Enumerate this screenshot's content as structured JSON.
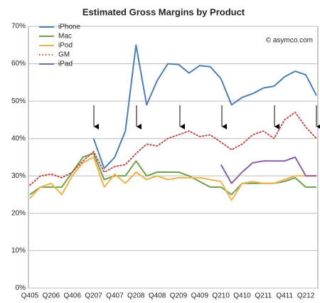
{
  "chart_data": {
    "type": "line",
    "title": "Estimated Gross Margins by Product",
    "annotation": "© asymco.com",
    "categories": [
      "Q405",
      null,
      "Q206",
      null,
      "Q406",
      null,
      "Q207",
      null,
      "Q407",
      null,
      "Q208",
      null,
      "Q408",
      null,
      "Q209",
      null,
      "Q409",
      null,
      "Q210",
      null,
      "Q410",
      null,
      "Q211",
      null,
      "Q411",
      null,
      "Q212",
      null
    ],
    "ylim": [
      0,
      70
    ],
    "yticks": [
      {
        "value": 0,
        "label": "0%"
      },
      {
        "value": 10,
        "label": "10%"
      },
      {
        "value": 20,
        "label": "20%"
      },
      {
        "value": 30,
        "label": "30%"
      },
      {
        "value": 40,
        "label": "40%"
      },
      {
        "value": 50,
        "label": "50%"
      },
      {
        "value": 60,
        "label": "60%"
      },
      {
        "value": 70,
        "label": "70%"
      }
    ],
    "grid": true,
    "legend": "upper left",
    "series": [
      {
        "name": "iPhone",
        "color": "#4a7eb5",
        "style": "solid",
        "values": [
          null,
          null,
          null,
          null,
          null,
          null,
          40,
          32,
          35,
          42,
          65,
          49,
          55.5,
          60,
          59.8,
          57.5,
          59.5,
          59.2,
          56,
          49,
          51,
          52,
          53.5,
          54,
          56.5,
          58,
          57,
          51.5
        ]
      },
      {
        "name": "Mac",
        "color": "#6ea14a",
        "style": "solid",
        "values": [
          25,
          27,
          27,
          27,
          31,
          35,
          36,
          29,
          30,
          30,
          34,
          30,
          31,
          31,
          31,
          30,
          28.5,
          27,
          27,
          25,
          28,
          28,
          28,
          28,
          28.5,
          29.5,
          27,
          27
        ]
      },
      {
        "name": "iPod",
        "color": "#f0b24a",
        "style": "solid",
        "values": [
          24,
          27,
          28,
          25,
          30,
          33.5,
          35,
          27,
          30.5,
          28,
          31,
          29,
          30,
          29,
          29.5,
          29.5,
          29.5,
          29,
          28.5,
          23.5,
          28,
          28.5,
          28,
          28,
          29,
          30,
          30,
          30
        ]
      },
      {
        "name": "GM",
        "color": "#c0504d",
        "style": "dotted",
        "values": [
          27.5,
          30,
          30.5,
          29.5,
          31,
          34,
          36.5,
          31,
          32.5,
          33,
          36,
          38.5,
          38,
          40,
          41,
          42,
          40.5,
          41,
          39,
          37,
          38.5,
          41,
          42,
          40,
          45,
          47,
          43,
          40
        ]
      },
      {
        "name": "iPad",
        "color": "#8b5ea8",
        "style": "solid",
        "values": [
          null,
          null,
          null,
          null,
          null,
          null,
          null,
          null,
          null,
          null,
          null,
          null,
          null,
          null,
          null,
          null,
          null,
          null,
          33,
          28,
          31,
          33.5,
          34,
          34,
          34,
          35,
          30,
          30
        ]
      }
    ]
  }
}
